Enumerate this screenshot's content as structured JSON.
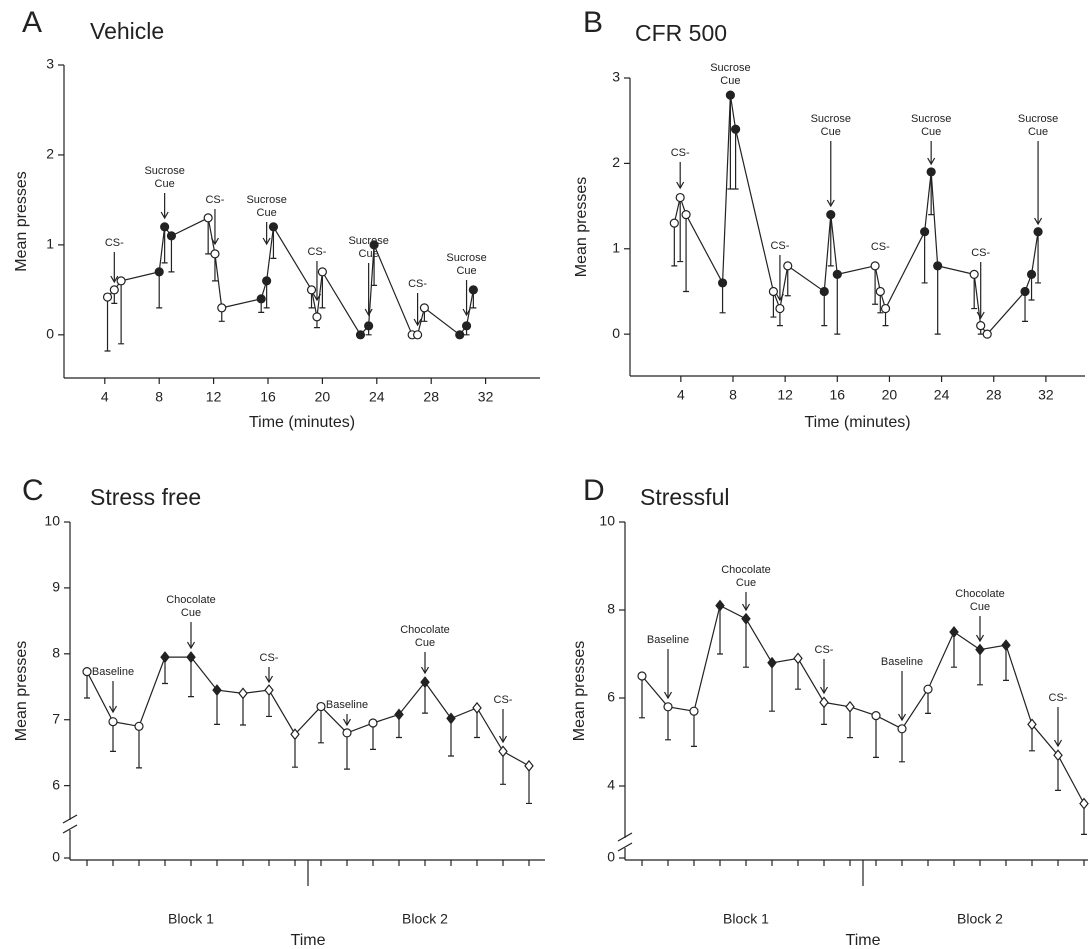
{
  "chart_data": [
    {
      "type": "line",
      "label": "A",
      "title": "Vehicle",
      "xlabel": "Time (minutes)",
      "ylabel": "Mean presses",
      "x": [
        4.2,
        4.7,
        5.2,
        8.0,
        8.4,
        8.9,
        11.6,
        12.1,
        12.6,
        15.5,
        15.9,
        16.4,
        19.2,
        19.6,
        20.0,
        22.8,
        23.4,
        23.8,
        26.6,
        27.0,
        27.5,
        30.1,
        30.6,
        31.1
      ],
      "series": [
        {
          "color": "#222222",
          "values": [
            0.42,
            0.5,
            0.6,
            0.7,
            1.2,
            1.1,
            1.3,
            0.9,
            0.3,
            0.4,
            0.6,
            1.2,
            0.5,
            0.2,
            0.7,
            0,
            0.1,
            1.0,
            0,
            0,
            0.3,
            0,
            0.1,
            0.5
          ],
          "errors": [
            0.6,
            0.15,
            0.7,
            0.4,
            0.4,
            0.4,
            0.4,
            0.3,
            0.15,
            0.15,
            0.3,
            0.35,
            0.2,
            0.12,
            0.4,
            0,
            0.1,
            0.45,
            0,
            0,
            0.15,
            0,
            0.1,
            0.2
          ],
          "markers": [
            "open-circle",
            "open-circle",
            "open-circle",
            "filled-circle",
            "filled-circle",
            "filled-circle",
            "open-circle",
            "open-circle",
            "open-circle",
            "filled-circle",
            "filled-circle",
            "filled-circle",
            "open-circle",
            "open-circle",
            "open-circle",
            "filled-circle",
            "filled-circle",
            "filled-circle",
            "open-circle",
            "open-circle",
            "open-circle",
            "filled-circle",
            "filled-circle",
            "filled-circle"
          ]
        }
      ],
      "xlim": [
        1,
        36
      ],
      "xticks": [
        4,
        8,
        12,
        16,
        20,
        24,
        28,
        32
      ],
      "ylim": [
        -0.48,
        3
      ],
      "yticks": [
        0,
        1,
        2,
        3
      ],
      "annotations": [
        {
          "text": [
            "CS-"
          ]
        },
        {
          "text": [
            "Sucrose",
            "Cue"
          ]
        },
        {
          "text": [
            "CS-"
          ]
        },
        {
          "text": [
            "Sucrose",
            "Cue"
          ]
        },
        {
          "text": [
            "CS-"
          ]
        },
        {
          "text": [
            "Sucrose",
            "Cue"
          ]
        },
        {
          "text": [
            "CS-"
          ]
        },
        {
          "text": [
            "Sucrose",
            "Cue"
          ]
        }
      ]
    },
    {
      "type": "line",
      "label": "B",
      "title": "CFR 500",
      "xlabel": "Time (minutes)",
      "ylabel": "Mean presses",
      "x": [
        3.5,
        3.95,
        4.4,
        7.2,
        7.8,
        8.2,
        11.1,
        11.6,
        12.2,
        15.0,
        15.5,
        16.0,
        18.9,
        19.3,
        19.7,
        22.7,
        23.2,
        23.7,
        26.5,
        27.0,
        27.5,
        30.4,
        30.9,
        31.4
      ],
      "series": [
        {
          "color": "#222222",
          "values": [
            1.3,
            1.6,
            1.4,
            0.6,
            2.8,
            2.4,
            0.5,
            0.3,
            0.8,
            0.5,
            1.4,
            0.7,
            0.8,
            0.5,
            0.3,
            1.2,
            1.9,
            0.8,
            0.7,
            0.1,
            0,
            0.5,
            0.7,
            1.2
          ],
          "errors": [
            0.5,
            0.75,
            0.9,
            0.35,
            1.1,
            0.7,
            0.3,
            0.2,
            0.35,
            0.4,
            0.6,
            0.7,
            0.45,
            0.25,
            0.2,
            0.6,
            0.5,
            0.8,
            0.4,
            0.1,
            0,
            0.35,
            0.3,
            0.6
          ],
          "markers": [
            "open-circle",
            "open-circle",
            "open-circle",
            "filled-circle",
            "filled-circle",
            "filled-circle",
            "open-circle",
            "open-circle",
            "open-circle",
            "filled-circle",
            "filled-circle",
            "filled-circle",
            "open-circle",
            "open-circle",
            "open-circle",
            "filled-circle",
            "filled-circle",
            "filled-circle",
            "open-circle",
            "open-circle",
            "open-circle",
            "filled-circle",
            "filled-circle",
            "filled-circle"
          ]
        }
      ],
      "xlim": [
        0.1,
        35
      ],
      "xticks": [
        4,
        8,
        12,
        16,
        20,
        24,
        28,
        32
      ],
      "ylim": [
        -0.49,
        3
      ],
      "yticks": [
        0,
        1,
        2,
        3
      ],
      "annotations": [
        {
          "text": [
            "CS-"
          ]
        },
        {
          "text": [
            "Sucrose",
            "Cue"
          ]
        },
        {
          "text": [
            "CS-"
          ]
        },
        {
          "text": [
            "Sucrose",
            "Cue"
          ]
        },
        {
          "text": [
            "CS-"
          ]
        },
        {
          "text": [
            "Sucrose",
            "Cue"
          ]
        },
        {
          "text": [
            "CS-"
          ]
        },
        {
          "text": [
            "Sucrose",
            "Cue"
          ]
        }
      ]
    },
    {
      "type": "line",
      "label": "C",
      "title": "Stress free",
      "xlabel": "Time",
      "ylabel": "Mean presses",
      "categories": [
        null,
        null,
        null,
        null,
        null,
        null,
        null,
        null,
        null,
        null,
        null,
        null,
        null,
        null,
        null,
        null,
        null,
        null
      ],
      "groups": [
        "Block 1",
        "Block 2"
      ],
      "series": [
        {
          "color": "#222222",
          "values": [
            7.73,
            6.97,
            6.9,
            7.95,
            7.95,
            7.45,
            7.4,
            7.45,
            6.78,
            7.2,
            6.8,
            6.95,
            7.08,
            7.57,
            7.02,
            7.18,
            6.52,
            6.3
          ],
          "errors": [
            0.4,
            0.45,
            0.63,
            0.4,
            0.6,
            0.52,
            0.48,
            0.4,
            0.5,
            0.55,
            0.55,
            0.4,
            0.35,
            0.47,
            0.57,
            0.45,
            0.5,
            0.57
          ],
          "markers": [
            "open-circle",
            "open-circle",
            "open-circle",
            "filled-diamond",
            "filled-diamond",
            "filled-diamond",
            "open-diamond",
            "open-diamond",
            "open-diamond",
            "open-circle",
            "open-circle",
            "open-circle",
            "filled-diamond",
            "filled-diamond",
            "filled-diamond",
            "open-diamond",
            "open-diamond",
            "open-diamond"
          ]
        }
      ],
      "ylim": [
        5.6,
        10
      ],
      "yticks": [
        0,
        6,
        7,
        8,
        9,
        10
      ],
      "axis_break": true,
      "annotations": [
        {
          "text": [
            "Baseline"
          ]
        },
        {
          "text": [
            "Chocolate",
            "Cue"
          ]
        },
        {
          "text": [
            "CS-"
          ]
        },
        {
          "text": [
            "Baseline"
          ]
        },
        {
          "text": [
            "Chocolate",
            "Cue"
          ]
        },
        {
          "text": [
            "CS-"
          ]
        }
      ]
    },
    {
      "type": "line",
      "label": "D",
      "title": "Stressful",
      "xlabel": "Time",
      "ylabel": "Mean presses",
      "categories": [
        null,
        null,
        null,
        null,
        null,
        null,
        null,
        null,
        null,
        null,
        null,
        null,
        null,
        null,
        null,
        null,
        null,
        null
      ],
      "groups": [
        "Block 1",
        "Block 2"
      ],
      "series": [
        {
          "color": "#222222",
          "values": [
            6.5,
            5.8,
            5.7,
            8.1,
            7.8,
            6.8,
            6.9,
            5.9,
            5.8,
            5.6,
            5.3,
            6.2,
            7.5,
            7.1,
            7.2,
            5.4,
            4.7,
            3.6
          ],
          "errors": [
            0.95,
            0.75,
            0.8,
            1.1,
            1.1,
            1.1,
            0.7,
            0.5,
            0.7,
            0.95,
            0.75,
            0.55,
            0.8,
            0.8,
            0.8,
            0.6,
            0.8,
            0.7
          ],
          "markers": [
            "open-circle",
            "open-circle",
            "open-circle",
            "filled-diamond",
            "filled-diamond",
            "filled-diamond",
            "open-diamond",
            "open-diamond",
            "open-diamond",
            "open-circle",
            "open-circle",
            "open-circle",
            "filled-diamond",
            "filled-diamond",
            "filled-diamond",
            "open-diamond",
            "open-diamond",
            "open-diamond"
          ]
        }
      ],
      "ylim": [
        3,
        10
      ],
      "yticks": [
        0,
        4,
        6,
        8,
        10
      ],
      "axis_break": true,
      "annotations": [
        {
          "text": [
            "Baseline"
          ]
        },
        {
          "text": [
            "Chocolate",
            "Cue"
          ]
        },
        {
          "text": [
            "CS-"
          ]
        },
        {
          "text": [
            "Baseline"
          ]
        },
        {
          "text": [
            "Chocolate",
            "Cue"
          ]
        },
        {
          "text": [
            "CS-"
          ]
        }
      ]
    }
  ]
}
